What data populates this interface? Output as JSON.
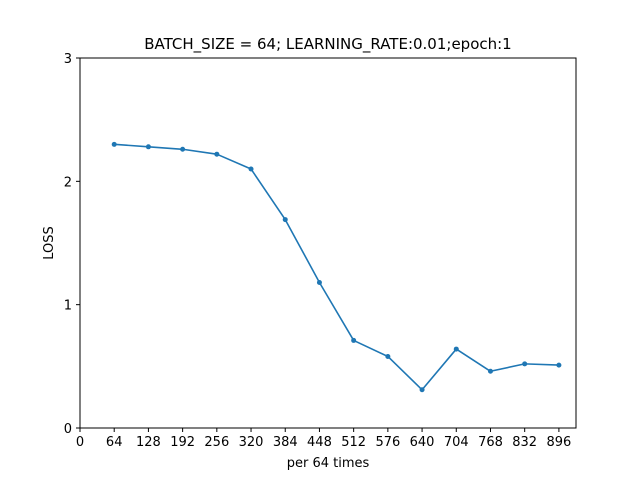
{
  "chart_data": {
    "type": "line",
    "title": "BATCH_SIZE = 64; LEARNING_RATE:0.01;epoch:1",
    "xlabel": "per 64 times",
    "ylabel": "LOSS",
    "xlim": [
      0,
      928
    ],
    "ylim": [
      0,
      3
    ],
    "xticks": [
      0,
      64,
      128,
      192,
      256,
      320,
      384,
      448,
      512,
      576,
      640,
      704,
      768,
      832,
      896
    ],
    "yticks": [
      0,
      1,
      2,
      3
    ],
    "grid": false,
    "marker": "circle",
    "series": [
      {
        "color": "#1f77b4",
        "x": [
          64,
          128,
          192,
          256,
          320,
          384,
          448,
          512,
          576,
          640,
          704,
          768,
          832,
          896
        ],
        "y": [
          2.3,
          2.28,
          2.26,
          2.22,
          2.1,
          1.69,
          1.18,
          0.71,
          0.58,
          0.31,
          0.64,
          0.46,
          0.52,
          0.51
        ]
      }
    ]
  }
}
